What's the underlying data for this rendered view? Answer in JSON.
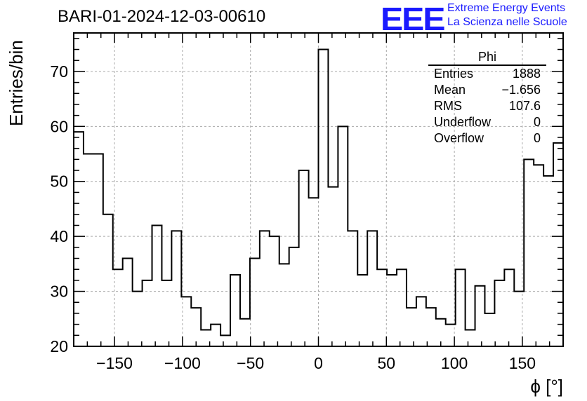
{
  "title": "BARI-01-2024-12-03-00610",
  "logo": {
    "mark": "EEE",
    "line1": "Extreme Energy Events",
    "line2": "La Scienza nelle Scuole",
    "color": "#1a1aff"
  },
  "stats": {
    "name": "Phi",
    "rows": [
      {
        "label": "Entries",
        "value": "1888"
      },
      {
        "label": "Mean",
        "value": "−1.656"
      },
      {
        "label": "RMS",
        "value": "107.6"
      },
      {
        "label": "Underflow",
        "value": "0"
      },
      {
        "label": "Overflow",
        "value": "0"
      }
    ]
  },
  "chart_data": {
    "type": "histogram",
    "xlabel": "ϕ [°]",
    "ylabel": "Entries/bin",
    "xlim": [
      -180,
      180
    ],
    "ylim": [
      20,
      77
    ],
    "bin_width": 7.2,
    "x_ticks": [
      -150,
      -100,
      -50,
      0,
      50,
      100,
      150
    ],
    "x_tick_labels": [
      "−150",
      "−100",
      "−50",
      "0",
      "50",
      "100",
      "150"
    ],
    "y_ticks": [
      20,
      30,
      40,
      50,
      60,
      70
    ],
    "y_tick_labels": [
      "20",
      "30",
      "40",
      "50",
      "60",
      "70"
    ],
    "grid": true,
    "values": [
      59,
      55,
      55,
      44,
      34,
      36,
      30,
      32,
      42,
      32,
      41,
      29,
      27,
      23,
      24,
      22,
      33,
      25,
      36,
      41,
      40,
      35,
      38,
      52,
      47,
      74,
      49,
      60,
      41,
      33,
      41,
      34,
      33,
      34,
      27,
      29,
      27,
      25,
      24,
      34,
      23,
      31,
      26,
      32,
      34,
      30,
      54,
      53,
      51,
      57
    ],
    "line_color": "#000000"
  }
}
